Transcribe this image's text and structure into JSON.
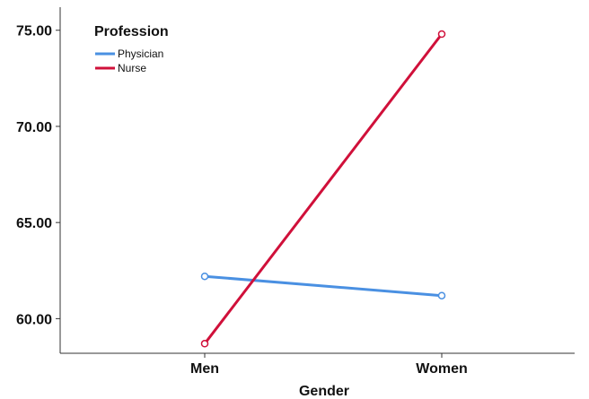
{
  "chart_data": {
    "type": "line",
    "categories": [
      "Men",
      "Women"
    ],
    "xlabel": "Gender",
    "ylabel": "",
    "ylim": [
      58.2,
      76.2
    ],
    "yticks": [
      "60.00",
      "65.00",
      "70.00",
      "75.00"
    ],
    "legend": {
      "title": "Profession",
      "placement": "top-left"
    },
    "series": [
      {
        "name": "Physician",
        "color": "#4a90e2",
        "values": [
          62.2,
          61.2
        ]
      },
      {
        "name": "Nurse",
        "color": "#d0103a",
        "values": [
          58.7,
          74.8
        ]
      }
    ],
    "grid": false
  }
}
